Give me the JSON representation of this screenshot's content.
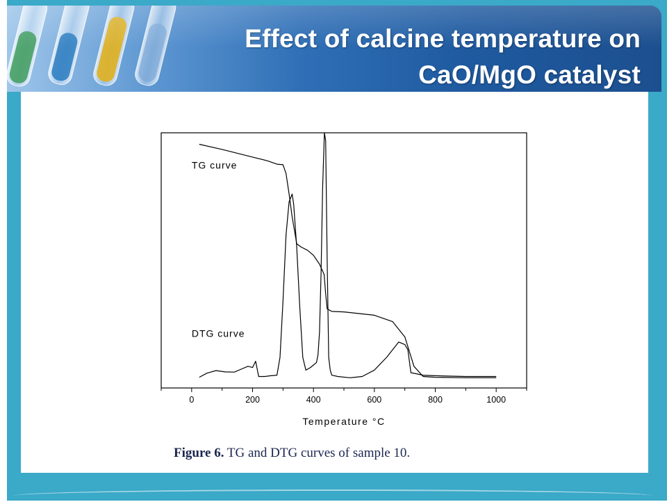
{
  "slide": {
    "title_line1": "Effect of calcine temperature on",
    "title_line2": "CaO/MgO catalyst"
  },
  "caption": {
    "label": "Figure 6.",
    "text": " TG and DTG curves of sample 10."
  },
  "colors": {
    "frame": "#3ba9c8",
    "header_dark": "#1c4f8f",
    "header_light": "#9fc6ea",
    "caption_text": "#1b2650"
  },
  "chart_data": {
    "type": "line",
    "title": "",
    "xlabel": "Temperature  °C",
    "ylabel": "",
    "xlim": [
      -100,
      1100
    ],
    "ylim": [
      0,
      1
    ],
    "xticks": [
      0,
      200,
      400,
      600,
      800,
      1000
    ],
    "grid": false,
    "legend": "none",
    "series": [
      {
        "name": "TG curve",
        "label_at": [
          0,
          0.86
        ],
        "x": [
          25,
          100,
          200,
          250,
          280,
          300,
          310,
          320,
          330,
          340,
          345,
          360,
          380,
          400,
          420,
          435,
          440,
          445,
          460,
          500,
          600,
          660,
          700,
          730,
          760,
          800,
          900,
          1000
        ],
        "y": [
          0.955,
          0.935,
          0.905,
          0.89,
          0.877,
          0.875,
          0.84,
          0.76,
          0.67,
          0.6,
          0.565,
          0.552,
          0.54,
          0.52,
          0.485,
          0.445,
          0.37,
          0.31,
          0.3,
          0.298,
          0.285,
          0.26,
          0.2,
          0.085,
          0.045,
          0.042,
          0.04,
          0.04
        ]
      },
      {
        "name": "DTG curve",
        "label_at": [
          0,
          0.2
        ],
        "x": [
          25,
          50,
          80,
          110,
          140,
          165,
          185,
          200,
          210,
          220,
          240,
          260,
          280,
          290,
          300,
          310,
          320,
          330,
          335,
          345,
          355,
          365,
          375,
          390,
          400,
          410,
          415,
          420,
          425,
          430,
          436,
          440,
          445,
          450,
          455,
          460,
          480,
          520,
          560,
          600,
          640,
          680,
          700,
          710,
          720,
          760,
          800,
          900,
          1000
        ],
        "y": [
          0.042,
          0.058,
          0.068,
          0.063,
          0.062,
          0.075,
          0.085,
          0.08,
          0.105,
          0.045,
          0.045,
          0.048,
          0.05,
          0.12,
          0.34,
          0.6,
          0.73,
          0.76,
          0.72,
          0.55,
          0.32,
          0.12,
          0.07,
          0.08,
          0.09,
          0.1,
          0.13,
          0.22,
          0.45,
          0.78,
          1.0,
          0.97,
          0.5,
          0.12,
          0.07,
          0.05,
          0.045,
          0.04,
          0.045,
          0.07,
          0.12,
          0.18,
          0.17,
          0.15,
          0.06,
          0.05,
          0.048,
          0.045,
          0.045
        ]
      }
    ]
  }
}
